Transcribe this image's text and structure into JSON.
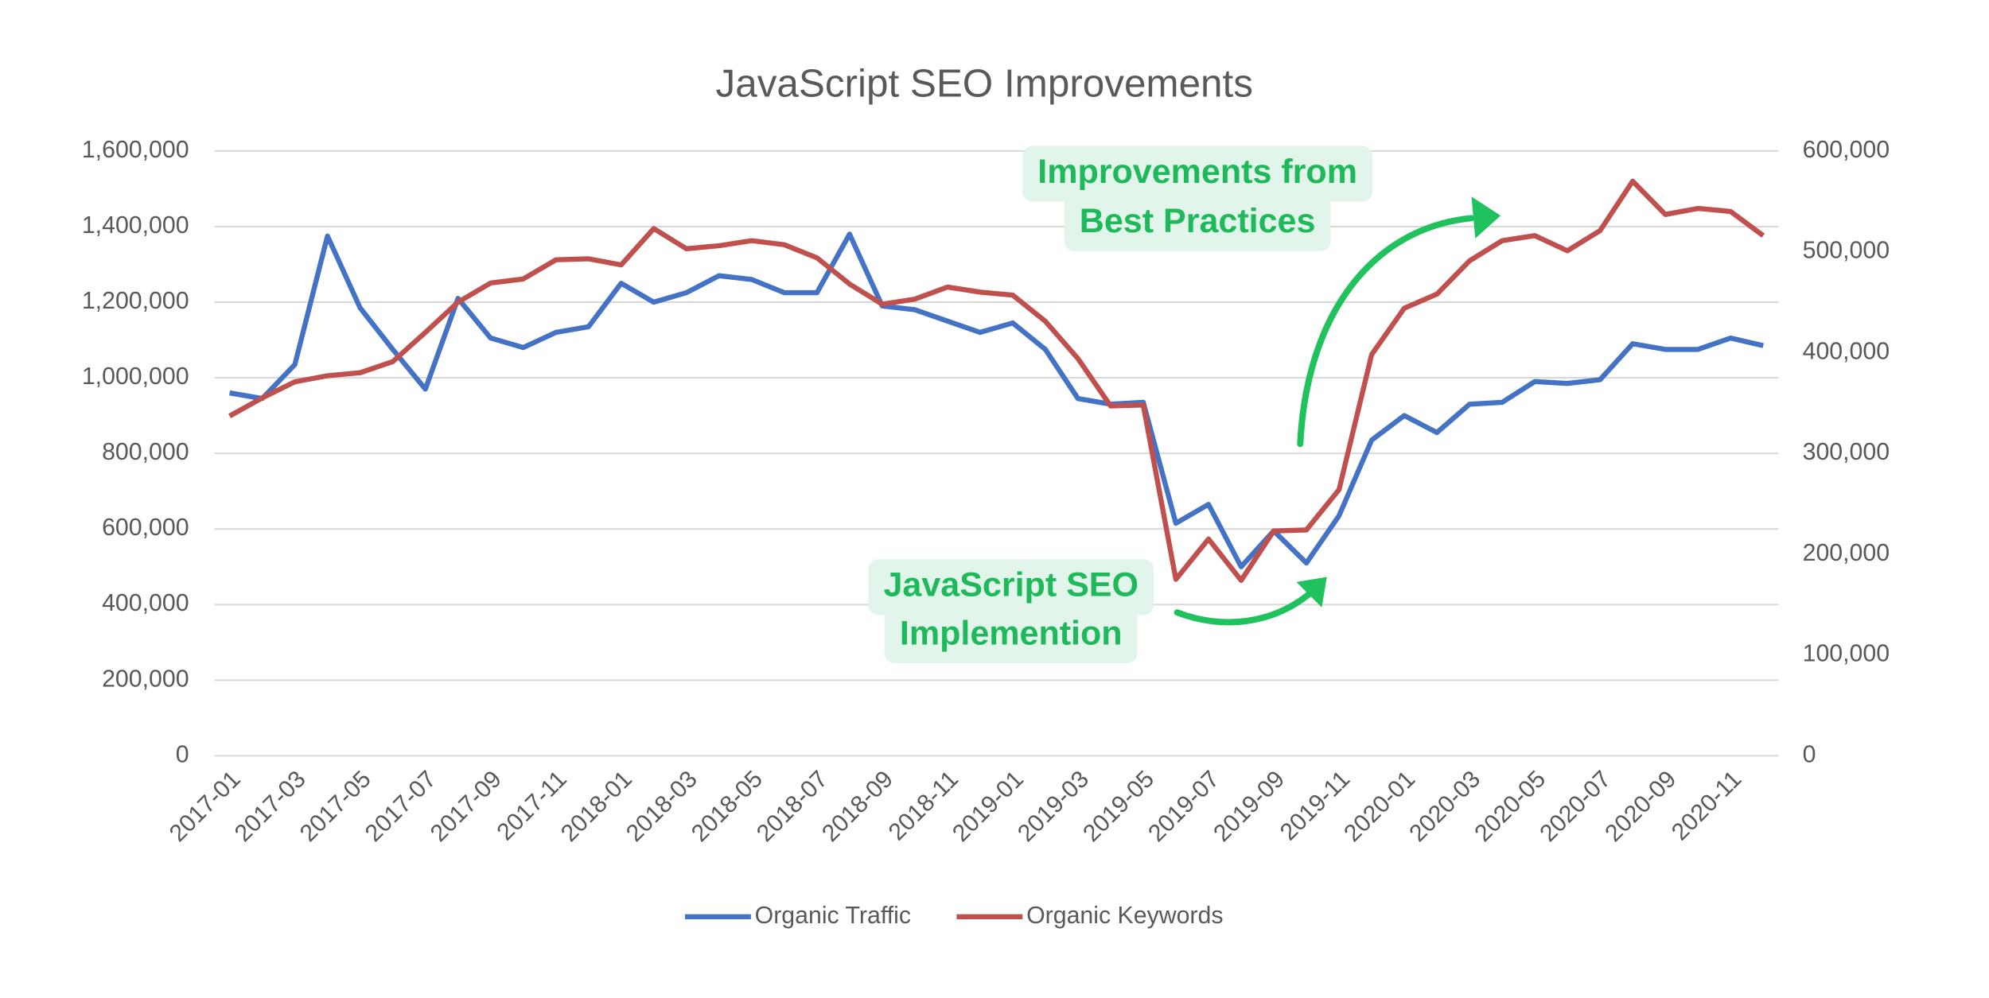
{
  "chart_data": {
    "type": "line",
    "title": "JavaScript SEO Improvements",
    "categories": [
      "2017-01",
      null,
      "2017-03",
      null,
      "2017-05",
      null,
      "2017-07",
      null,
      "2017-09",
      null,
      "2017-11",
      null,
      "2018-01",
      null,
      "2018-03",
      null,
      "2018-05",
      null,
      "2018-07",
      null,
      "2018-09",
      null,
      "2018-11",
      null,
      "2019-01",
      null,
      "2019-03",
      null,
      "2019-05",
      null,
      "2019-07",
      null,
      "2019-09",
      null,
      "2019-11",
      null,
      "2020-01",
      null,
      "2020-03",
      null,
      "2020-05",
      null,
      "2020-07",
      null,
      "2020-09",
      null,
      "2020-11",
      null
    ],
    "series": [
      {
        "name": "Organic Traffic",
        "color": "#4472c4",
        "values": [
          960000,
          945000,
          1035000,
          1375000,
          1185000,
          1075000,
          970000,
          1210000,
          1105000,
          1080000,
          1120000,
          1135000,
          1250000,
          1200000,
          1225000,
          1270000,
          1260000,
          1225000,
          1225000,
          1380000,
          1190000,
          1180000,
          1150000,
          1120000,
          1145000,
          1075000,
          945000,
          930000,
          935000,
          615000,
          665000,
          500000,
          595000,
          510000,
          635000,
          835000,
          900000,
          855000,
          930000,
          935000,
          990000,
          985000,
          995000,
          1090000,
          1075000,
          1075000,
          1105000,
          1085000
        ]
      },
      {
        "name": "Organic Keywords",
        "color": "#c0504d",
        "axis": "y2",
        "values": [
          337000,
          355000,
          371000,
          377000,
          380000,
          391000,
          420000,
          450000,
          469000,
          473000,
          492000,
          493000,
          487000,
          523000,
          503000,
          506000,
          511000,
          507000,
          494000,
          468000,
          448000,
          453000,
          465000,
          460000,
          457000,
          431000,
          394000,
          347000,
          348000,
          175000,
          215000,
          174000,
          223000,
          224000,
          264000,
          398000,
          444000,
          458000,
          491000,
          511000,
          516000,
          501000,
          521000,
          570000,
          537000,
          543000,
          540000,
          516000
        ]
      }
    ],
    "ylim": [
      0,
      1600000
    ],
    "yticks": [
      0,
      {
        "value": 200000,
        "label": "200,000"
      },
      {
        "value": 400000,
        "label": "400,000"
      },
      {
        "value": 600000,
        "label": "600,000"
      },
      {
        "value": 800000,
        "label": "800,000"
      },
      {
        "value": 1000000,
        "label": "1,000,000"
      },
      {
        "value": 1200000,
        "label": "1,200,000"
      },
      {
        "value": 1400000,
        "label": "1,400,000"
      },
      {
        "value": 1600000,
        "label": "1,600,000"
      }
    ],
    "y2lim": [
      0,
      600000
    ],
    "y2ticks": [
      0,
      {
        "value": 100000,
        "label": "100,000"
      },
      {
        "value": 200000,
        "label": "200,000"
      },
      {
        "value": 300000,
        "label": "300,000"
      },
      {
        "value": 400000,
        "label": "400,000"
      },
      {
        "value": 500000,
        "label": "500,000"
      },
      {
        "value": 600000,
        "label": "600,000"
      }
    ],
    "grid": true,
    "legend": "bottom",
    "annotations": [
      {
        "lines": [
          "Improvements from",
          "Best Practices"
        ]
      },
      {
        "lines": [
          "JavaScript SEO",
          "Implemention"
        ]
      }
    ]
  }
}
